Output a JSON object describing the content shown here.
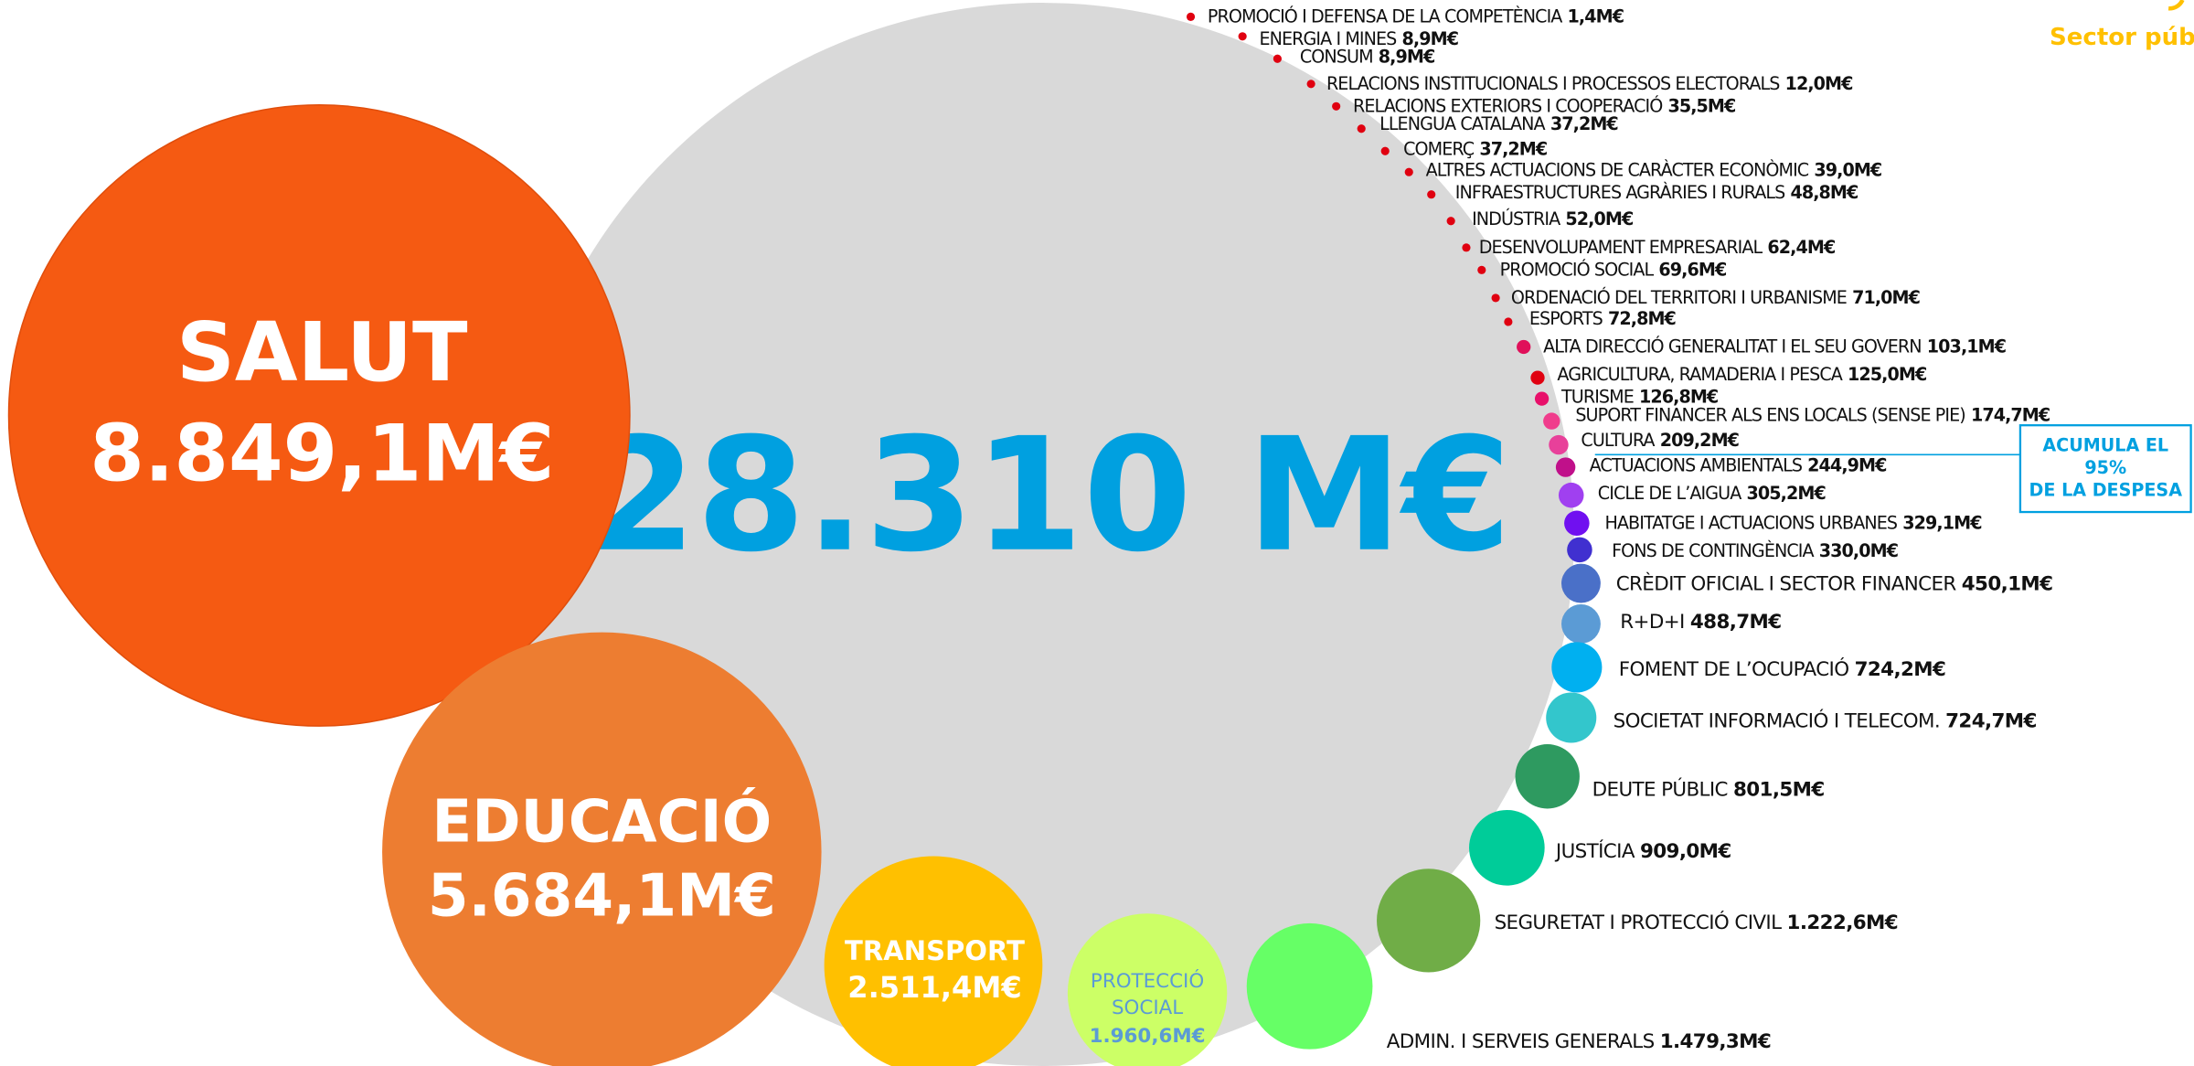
{
  "header": "Sector púb",
  "total": "28.310 M€",
  "callout": [
    "ACUMULA EL",
    "95%",
    "DE LA DESPESA"
  ],
  "main": [
    {
      "label": "SALUT",
      "amount": "8.849,1M€"
    },
    {
      "label": "EDUCACIÓ",
      "amount": "5.684,1M€"
    },
    {
      "label": "TRANSPORT",
      "amount": "2.511,4M€"
    },
    {
      "label_lines": [
        "PROTECCIÓ",
        "SOCIAL"
      ],
      "amount": "1.960,6M€"
    }
  ],
  "items": [
    {
      "label": "PROMOCIÓ I DEFENSA DE LA COMPETÈNCIA",
      "amount": "1,4M€"
    },
    {
      "label": "ENERGIA I MINES",
      "amount": "8,9M€"
    },
    {
      "label": "CONSUM",
      "amount": "8,9M€"
    },
    {
      "label": "RELACIONS INSTITUCIONALS  I PROCESSOS ELECTORALS",
      "amount": "12,0M€"
    },
    {
      "label": "RELACIONS EXTERIORS I COOPERACIÓ",
      "amount": "35,5M€"
    },
    {
      "label": "LLENGUA CATALANA",
      "amount": "37,2M€"
    },
    {
      "label": "COMERÇ",
      "amount": "37,2M€"
    },
    {
      "label": "ALTRES ACTUACIONS DE CARÀCTER ECONÒMIC",
      "amount": "39,0M€"
    },
    {
      "label": "INFRAESTRUCTURES AGRÀRIES I RURALS",
      "amount": "48,8M€"
    },
    {
      "label": "INDÚSTRIA",
      "amount": "52,0M€"
    },
    {
      "label": "DESENVOLUPAMENT EMPRESARIAL",
      "amount": "62,4M€"
    },
    {
      "label": "PROMOCIÓ SOCIAL",
      "amount": "69,6M€"
    },
    {
      "label": "ORDENACIÓ DEL TERRITORI  I  URBANISME",
      "amount": "71,0M€"
    },
    {
      "label": "ESPORTS",
      "amount": "72,8M€"
    },
    {
      "label": "ALTA DIRECCIÓ GENERALITAT I EL SEU GOVERN",
      "amount": "103,1M€"
    },
    {
      "label": "AGRICULTURA, RAMADERIA I PESCA",
      "amount": "125,0M€"
    },
    {
      "label": "TURISME",
      "amount": "126,8M€"
    },
    {
      "label": "SUPORT FINANCER ALS ENS LOCALS (SENSE PIE)",
      "amount": "174,7M€"
    },
    {
      "label": "CULTURA",
      "amount": "209,2M€"
    },
    {
      "label": "ACTUACIONS AMBIENTALS",
      "amount": "244,9M€"
    },
    {
      "label": "CICLE DE L’AIGUA",
      "amount": "305,2M€"
    },
    {
      "label": "HABITATGE I ACTUACIONS URBANES",
      "amount": "329,1M€"
    },
    {
      "label": "FONS DE CONTINGÈNCIA",
      "amount": "330,0M€"
    },
    {
      "label": "CRÈDIT OFICIAL I SECTOR FINANCER",
      "amount": "450,1M€"
    },
    {
      "label": "R+D+I",
      "amount": "488,7M€"
    },
    {
      "label": "FOMENT DE L’OCUPACIÓ",
      "amount": "724,2M€"
    },
    {
      "label": "SOCIETAT INFORMACIÓ I TELECOM.",
      "amount": "724,7M€"
    },
    {
      "label": "DEUTE PÚBLIC",
      "amount": "801,5M€"
    },
    {
      "label": "JUSTÍCIA",
      "amount": "909,0M€"
    },
    {
      "label": "SEGURETAT I PROTECCIÓ CIVIL",
      "amount": "1.222,6M€"
    },
    {
      "label": "ADMIN. I SERVEIS GENERALS",
      "amount": "1.479,3M€"
    }
  ]
}
